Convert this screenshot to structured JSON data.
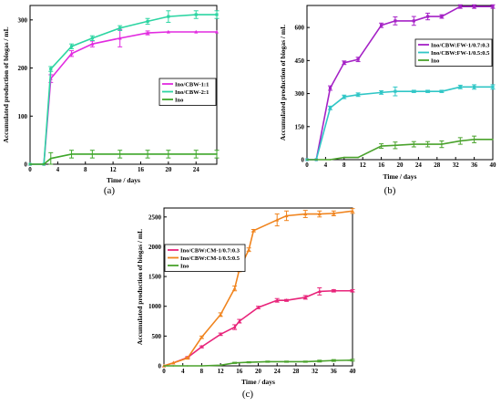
{
  "chart_data": [
    {
      "type": "line",
      "panel_label": "(a)",
      "xlabel": "Time / days",
      "ylabel": "Accumulated production of biogas / mL",
      "xlim": [
        0,
        27
      ],
      "ylim": [
        0,
        330
      ],
      "xticks": [
        0,
        4,
        8,
        12,
        16,
        20,
        24
      ],
      "yticks": [
        0,
        100,
        200,
        300
      ],
      "legend_position": "center-right",
      "series": [
        {
          "name": "Ino/CBW-1:1",
          "color": "#e22be0",
          "marker": "triangle",
          "x": [
            0,
            2,
            3,
            6,
            9,
            13,
            17,
            20,
            24,
            27
          ],
          "y": [
            0,
            0,
            178,
            230,
            250,
            262,
            273,
            275,
            275,
            275
          ],
          "err": [
            0,
            0,
            8,
            6,
            6,
            18,
            4,
            0,
            0,
            0
          ]
        },
        {
          "name": "Ino/CBW-2:1",
          "color": "#2cd5a2",
          "marker": "square",
          "x": [
            0,
            2,
            3,
            6,
            9,
            13,
            17,
            20,
            24,
            27
          ],
          "y": [
            0,
            0,
            198,
            245,
            262,
            283,
            297,
            307,
            311,
            311
          ],
          "err": [
            0,
            0,
            5,
            5,
            5,
            5,
            6,
            12,
            8,
            8
          ]
        },
        {
          "name": "Ino",
          "color": "#3ea62a",
          "marker": "none",
          "x": [
            0,
            2,
            3,
            6,
            9,
            13,
            17,
            20,
            24,
            27
          ],
          "y": [
            0,
            0,
            12,
            21,
            21,
            21,
            21,
            21,
            21,
            21
          ],
          "err": [
            0,
            0,
            12,
            8,
            8,
            8,
            8,
            8,
            8,
            8
          ]
        }
      ]
    },
    {
      "type": "line",
      "panel_label": "(b)",
      "xlabel": "Time / days",
      "ylabel": "Accumulated production of biogas / mL",
      "xlim": [
        0,
        40
      ],
      "ylim": [
        0,
        700
      ],
      "xticks": [
        0,
        4,
        8,
        12,
        16,
        20,
        24,
        28,
        32,
        36,
        40
      ],
      "yticks": [
        0,
        150,
        300,
        450,
        600
      ],
      "legend_position": "center-right",
      "series": [
        {
          "name": "Ino/CBW:FW-1/0.7:0.3",
          "color": "#a522c6",
          "marker": "square",
          "x": [
            0,
            2,
            5,
            8,
            11,
            16,
            19,
            23,
            26,
            29,
            33,
            36,
            40
          ],
          "y": [
            0,
            0,
            325,
            440,
            455,
            610,
            630,
            630,
            650,
            650,
            695,
            695,
            695
          ],
          "err": [
            0,
            0,
            10,
            8,
            10,
            10,
            18,
            20,
            15,
            8,
            8,
            8,
            8
          ]
        },
        {
          "name": "Ino/CBW:FW-1/0.5:0.5",
          "color": "#30c6c6",
          "marker": "square",
          "x": [
            0,
            2,
            5,
            8,
            11,
            16,
            19,
            23,
            26,
            29,
            33,
            36,
            40
          ],
          "y": [
            0,
            0,
            235,
            285,
            295,
            305,
            310,
            310,
            310,
            310,
            330,
            330,
            330
          ],
          "err": [
            0,
            0,
            8,
            8,
            8,
            8,
            20,
            5,
            5,
            5,
            8,
            10,
            10
          ]
        },
        {
          "name": "Ino",
          "color": "#4aa22c",
          "marker": "none",
          "x": [
            0,
            2,
            5,
            8,
            11,
            16,
            19,
            23,
            26,
            29,
            33,
            36,
            40
          ],
          "y": [
            0,
            0,
            0,
            10,
            10,
            62,
            65,
            70,
            70,
            70,
            85,
            92,
            92
          ],
          "err": [
            0,
            0,
            0,
            0,
            0,
            10,
            15,
            12,
            12,
            15,
            15,
            15,
            0
          ]
        }
      ]
    },
    {
      "type": "line",
      "panel_label": "(c)",
      "xlabel": "Time / days",
      "ylabel": "Accumulated production of biogas / mL",
      "xlim": [
        0,
        40
      ],
      "ylim": [
        0,
        2650
      ],
      "xticks": [
        0,
        4,
        8,
        12,
        16,
        20,
        24,
        28,
        32,
        36,
        40
      ],
      "yticks": [
        0,
        500,
        1000,
        1500,
        2000,
        2500
      ],
      "legend_position": "top-left",
      "series": [
        {
          "name": "Ino/CBW:CM-1/0.7:0.3",
          "color": "#e8247a",
          "marker": "triangle",
          "x": [
            0,
            2,
            5,
            8,
            12,
            15,
            16,
            20,
            24,
            26,
            30,
            33,
            36,
            40
          ],
          "y": [
            0,
            50,
            140,
            320,
            530,
            650,
            750,
            980,
            1100,
            1100,
            1150,
            1250,
            1260,
            1260
          ],
          "err": [
            0,
            0,
            15,
            15,
            20,
            40,
            30,
            20,
            30,
            15,
            30,
            60,
            20,
            20
          ]
        },
        {
          "name": "Ino/CBW:CM-1/0.5:0.5",
          "color": "#f0841e",
          "marker": "triangle",
          "x": [
            0,
            2,
            5,
            8,
            12,
            15,
            16,
            18,
            19,
            24,
            26,
            30,
            33,
            36,
            40
          ],
          "y": [
            0,
            50,
            130,
            480,
            860,
            1300,
            1620,
            1950,
            2270,
            2450,
            2520,
            2550,
            2550,
            2560,
            2600
          ],
          "err": [
            0,
            0,
            15,
            20,
            30,
            40,
            40,
            30,
            20,
            100,
            80,
            60,
            50,
            40,
            40
          ]
        },
        {
          "name": "Ino",
          "color": "#4aa22c",
          "marker": "none",
          "x": [
            0,
            2,
            5,
            8,
            12,
            15,
            18,
            22,
            26,
            30,
            33,
            36,
            40
          ],
          "y": [
            0,
            0,
            0,
            0,
            10,
            50,
            60,
            70,
            70,
            70,
            80,
            90,
            95
          ],
          "err": [
            0,
            0,
            0,
            0,
            0,
            10,
            10,
            10,
            10,
            10,
            15,
            15,
            15
          ]
        }
      ]
    }
  ]
}
